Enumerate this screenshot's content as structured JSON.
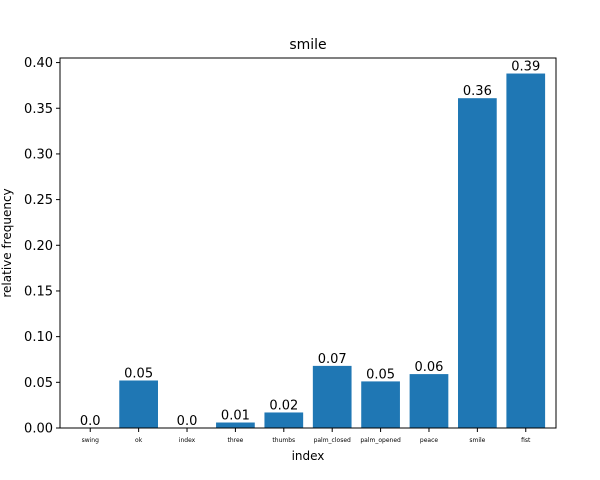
{
  "chart_data": {
    "type": "bar",
    "title": "smile",
    "xlabel": "index",
    "ylabel": "relative frequency",
    "categories": [
      "swing",
      "ok",
      "index",
      "three",
      "thumbs",
      "palm_closed",
      "palm_opened",
      "peace",
      "smile",
      "fist"
    ],
    "values": [
      0.0,
      0.052,
      0.0,
      0.006,
      0.017,
      0.068,
      0.051,
      0.059,
      0.361,
      0.388
    ],
    "data_labels": [
      "0.0",
      "0.05",
      "0.0",
      "0.01",
      "0.02",
      "0.07",
      "0.05",
      "0.06",
      "0.36",
      "0.39"
    ],
    "ylim": [
      0,
      0.405
    ],
    "yticks": [
      0.0,
      0.05,
      0.1,
      0.15,
      0.2,
      0.25,
      0.3,
      0.35,
      0.4
    ],
    "ytick_labels": [
      "0.00",
      "0.05",
      "0.10",
      "0.15",
      "0.20",
      "0.25",
      "0.30",
      "0.35",
      "0.40"
    ],
    "bar_color": "#1f77b4",
    "grid": false,
    "legend": "none"
  }
}
